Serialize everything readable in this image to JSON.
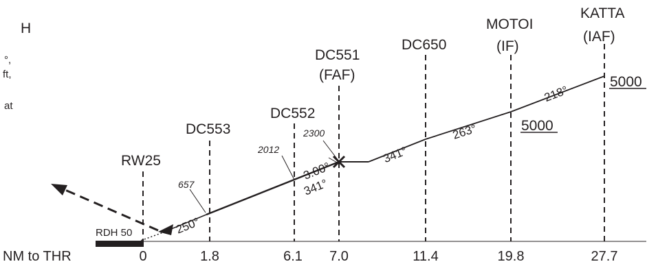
{
  "partial_notes": {
    "line1": "H",
    "line2": "°,",
    "line3": "ft,",
    "line4": "at"
  },
  "fixes": {
    "katta": {
      "name": "KATTA",
      "role": "(IAF)",
      "altitude": "5000",
      "distance": "27.7"
    },
    "motoi": {
      "name": "MOTOI",
      "role": "(IF)",
      "altitude": "5000",
      "distance": "19.8"
    },
    "dc650": {
      "name": "DC650",
      "distance": "11.4"
    },
    "dc551": {
      "name": "DC551",
      "role": "(FAF)",
      "altitude": "2300",
      "distance": "7.0"
    },
    "dc552": {
      "name": "DC552",
      "altitude": "2012",
      "distance": "6.1"
    },
    "dc553": {
      "name": "DC553",
      "altitude": "657",
      "distance": "1.8"
    },
    "rw25": {
      "name": "RW25",
      "distance": "0"
    }
  },
  "bearings": {
    "katta_motoi": "218°",
    "motoi_dc650": "263°",
    "dc650_fafturn": "341°",
    "final_on_path": "341°",
    "final_approach": "250°"
  },
  "glidepath": "3.00°",
  "rdh": "RDH 50",
  "axis_label": "NM to THR"
}
